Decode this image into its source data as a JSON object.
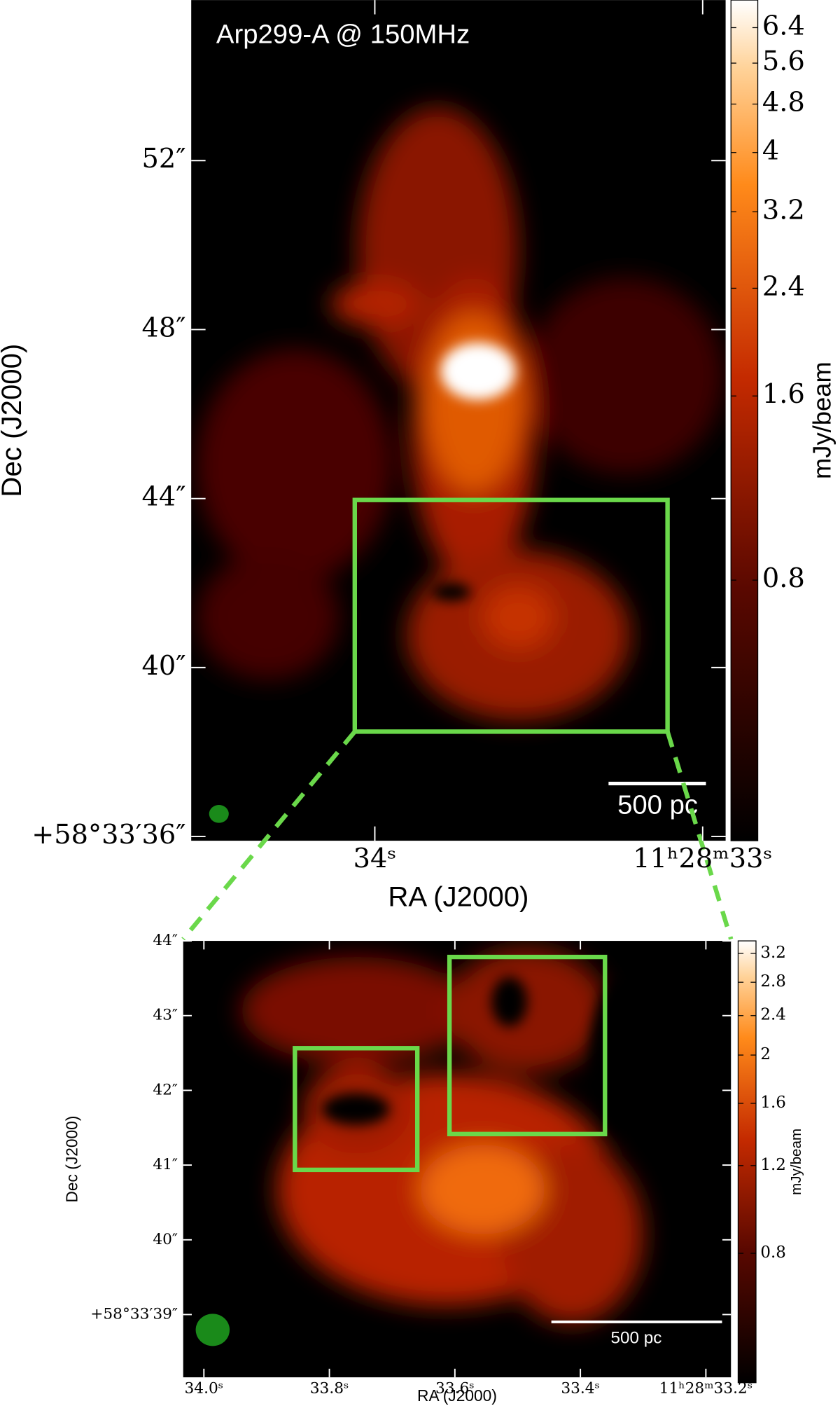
{
  "chart_data": [
    {
      "type": "image",
      "title": "Arp299-A @ 150MHz",
      "xlabel": "RA (J2000)",
      "ylabel": "Dec (J2000)",
      "xlim": [
        34.56,
        32.93
      ],
      "ylim": [
        35.9,
        55.8
      ],
      "xticks": [
        {
          "value": 34,
          "label": "34ˢ"
        },
        {
          "value": 33,
          "label": "11ʰ28ᵐ33ˢ"
        }
      ],
      "yticks": [
        {
          "value": 36,
          "label": "+58°33′36″"
        },
        {
          "value": 40,
          "label": "40″"
        },
        {
          "value": 44,
          "label": "44″"
        },
        {
          "value": 48,
          "label": "48″"
        },
        {
          "value": 52,
          "label": "52″"
        }
      ],
      "colorbar": {
        "label": "mJy/beam",
        "lim": [
          0.3,
          7.1
        ],
        "log": true,
        "ticks": [
          0.8,
          1.6,
          2.4,
          3.2,
          4.0,
          4.8,
          5.6,
          6.4
        ]
      },
      "scalebar": "500 pc"
    },
    {
      "type": "image",
      "xlabel": "RA (J2000)",
      "ylabel": "Dec (J2000)",
      "xlim": [
        34.033,
        33.16
      ],
      "ylim": [
        38.16,
        44
      ],
      "xticks": [
        {
          "value": 34.0,
          "label": "34.0ˢ"
        },
        {
          "value": 33.8,
          "label": "33.8ˢ"
        },
        {
          "value": 33.6,
          "label": "33.6ˢ"
        },
        {
          "value": 33.4,
          "label": "33.4ˢ"
        },
        {
          "value": 33.2,
          "label": "11ʰ28ᵐ33.2ˢ"
        }
      ],
      "yticks": [
        {
          "value": 39,
          "label": "+58°33′39″"
        },
        {
          "value": 40,
          "label": "40″"
        },
        {
          "value": 41,
          "label": "41″"
        },
        {
          "value": 42,
          "label": "42″"
        },
        {
          "value": 43,
          "label": "43″"
        },
        {
          "value": 44,
          "label": "44″"
        }
      ],
      "colorbar": {
        "label": "mJy/beam",
        "lim": [
          0.44,
          3.39
        ],
        "log": true,
        "ticks": [
          0.8,
          1.2,
          1.6,
          2.0,
          2.4,
          2.8,
          3.2
        ]
      },
      "scalebar": "500 pc"
    }
  ]
}
